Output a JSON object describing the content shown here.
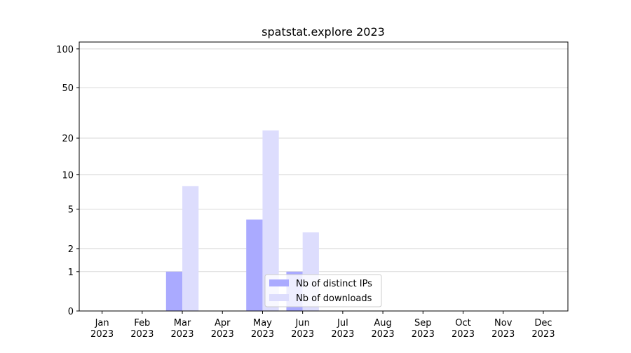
{
  "chart_data": {
    "type": "bar",
    "title": "spatstat.explore 2023",
    "categories": [
      "Jan 2023",
      "Feb 2023",
      "Mar 2023",
      "Apr 2023",
      "May 2023",
      "Jun 2023",
      "Jul 2023",
      "Aug 2023",
      "Sep 2023",
      "Oct 2023",
      "Nov 2023",
      "Dec 2023"
    ],
    "series": [
      {
        "name": "Nb of distinct IPs",
        "color": "#aaaaff",
        "values": [
          0,
          0,
          1,
          0,
          4,
          1,
          0,
          0,
          0,
          0,
          0,
          0
        ]
      },
      {
        "name": "Nb of downloads",
        "color": "#ddddfd",
        "values": [
          0,
          0,
          8,
          0,
          23,
          3,
          0,
          0,
          0,
          0,
          0,
          0
        ]
      }
    ],
    "yscale": "log1p",
    "ylim": [
      0,
      113
    ],
    "yticks": [
      0,
      1,
      2,
      5,
      10,
      20,
      50,
      100
    ],
    "grid": true,
    "legend": "lower center"
  }
}
